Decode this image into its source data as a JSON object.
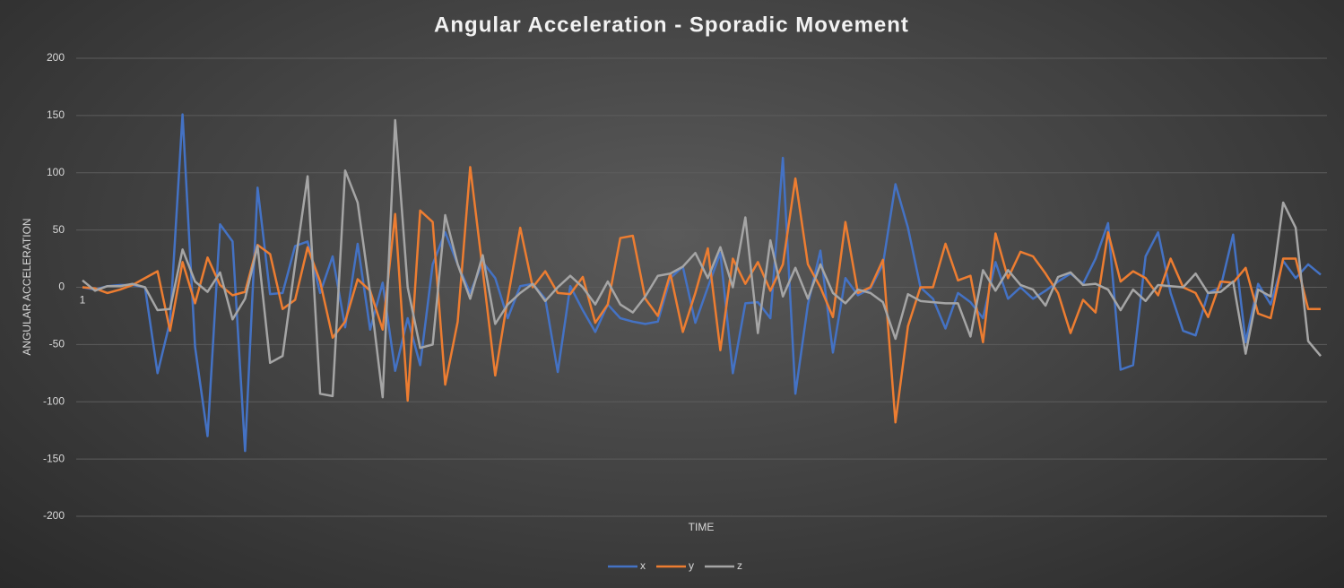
{
  "chart_data": {
    "type": "line",
    "title": "Angular Acceleration - Sporadic Movement",
    "x_label": "TIME",
    "y_label": "ANGULAR ACCELERATION",
    "categories": [
      "1",
      null,
      null,
      null,
      null,
      null,
      null,
      null,
      null,
      null,
      null,
      null,
      null,
      null,
      null,
      null,
      null,
      null,
      null,
      null,
      null,
      null,
      null,
      null,
      null,
      null,
      null,
      null,
      null,
      null,
      null,
      null,
      null,
      null,
      null,
      null,
      null,
      null,
      null,
      null,
      null,
      null,
      null,
      null,
      null,
      null,
      null,
      null,
      null,
      null,
      null,
      null,
      null,
      null,
      null,
      null,
      null,
      null,
      null,
      null,
      null,
      null,
      null,
      null,
      null,
      null,
      null,
      null,
      null,
      null,
      null,
      null,
      null,
      null,
      null,
      null,
      null,
      null,
      null,
      null,
      null,
      null,
      null,
      null,
      null,
      null,
      null,
      null,
      null,
      null,
      null,
      null,
      null,
      null,
      null,
      null,
      null,
      null,
      null,
      null
    ],
    "ylim": [
      -200,
      200
    ],
    "yticks": [
      -200,
      -150,
      -100,
      -50,
      0,
      50,
      100,
      150,
      200
    ],
    "grid": true,
    "legend": "bottom",
    "series": [
      {
        "name": "x",
        "color": "#4472c4",
        "values": [
          0,
          -2,
          1,
          2,
          2,
          0,
          -75,
          -30,
          151,
          -52,
          -130,
          55,
          40,
          -143,
          87,
          -6,
          -5,
          36,
          40,
          -5,
          27,
          -35,
          38,
          -37,
          4,
          -73,
          -27,
          -68,
          20,
          48,
          20,
          -5,
          22,
          8,
          -27,
          1,
          3,
          -10,
          -74,
          1,
          -20,
          -39,
          -15,
          -27,
          -30,
          -32,
          -30,
          8,
          18,
          -31,
          0,
          30,
          -75,
          -14,
          -13,
          -27,
          113,
          -93,
          -15,
          32,
          -57,
          8,
          -7,
          -1,
          20,
          90,
          52,
          0,
          -10,
          -36,
          -5,
          -13,
          -27,
          22,
          -10,
          0,
          -10,
          -3,
          5,
          12,
          3,
          25,
          56,
          -72,
          -68,
          27,
          48,
          -5,
          -38,
          -42,
          -5,
          0,
          46,
          -48,
          3,
          -15,
          23,
          8,
          20,
          11
        ]
      },
      {
        "name": "y",
        "color": "#ed7d31",
        "values": [
          0,
          -1,
          -5,
          -2,
          2,
          8,
          14,
          -38,
          22,
          -14,
          26,
          2,
          -7,
          -4,
          37,
          29,
          -19,
          -11,
          35,
          5,
          -44,
          -30,
          7,
          -3,
          -37,
          64,
          -99,
          67,
          57,
          -85,
          -30,
          105,
          15,
          -77,
          -10,
          52,
          0,
          14,
          -5,
          -6,
          9,
          -31,
          -15,
          43,
          45,
          -10,
          -25,
          12,
          -39,
          -5,
          34,
          -55,
          25,
          3,
          22,
          -3,
          20,
          95,
          20,
          0,
          -26,
          57,
          -5,
          0,
          24,
          -118,
          -34,
          0,
          0,
          38,
          6,
          10,
          -48,
          47,
          8,
          31,
          27,
          12,
          -5,
          -40,
          -11,
          -22,
          48,
          5,
          14,
          8,
          -7,
          25,
          0,
          -5,
          -26,
          5,
          4,
          17,
          -23,
          -27,
          25,
          25,
          -19,
          -19
        ]
      },
      {
        "name": "z",
        "color": "#a5a5a5",
        "values": [
          6,
          -3,
          1,
          1,
          3,
          0,
          -20,
          -19,
          33,
          5,
          -4,
          13,
          -28,
          -10,
          36,
          -66,
          -60,
          20,
          97,
          -93,
          -95,
          102,
          74,
          -5,
          -96,
          146,
          0,
          -53,
          -50,
          63,
          20,
          -10,
          28,
          -32,
          -15,
          -5,
          3,
          -12,
          0,
          10,
          0,
          -15,
          5,
          -15,
          -22,
          -8,
          10,
          12,
          18,
          30,
          8,
          35,
          0,
          61,
          -40,
          41,
          -8,
          17,
          -10,
          20,
          -5,
          -14,
          -2,
          -5,
          -13,
          -45,
          -6,
          -12,
          -13,
          -14,
          -14,
          -43,
          15,
          -3,
          15,
          2,
          -2,
          -16,
          9,
          13,
          2,
          3,
          -2,
          -20,
          -2,
          -12,
          2,
          1,
          0,
          12,
          -5,
          -4,
          5,
          -58,
          -2,
          -8,
          74,
          52,
          -47,
          -60
        ]
      }
    ]
  }
}
